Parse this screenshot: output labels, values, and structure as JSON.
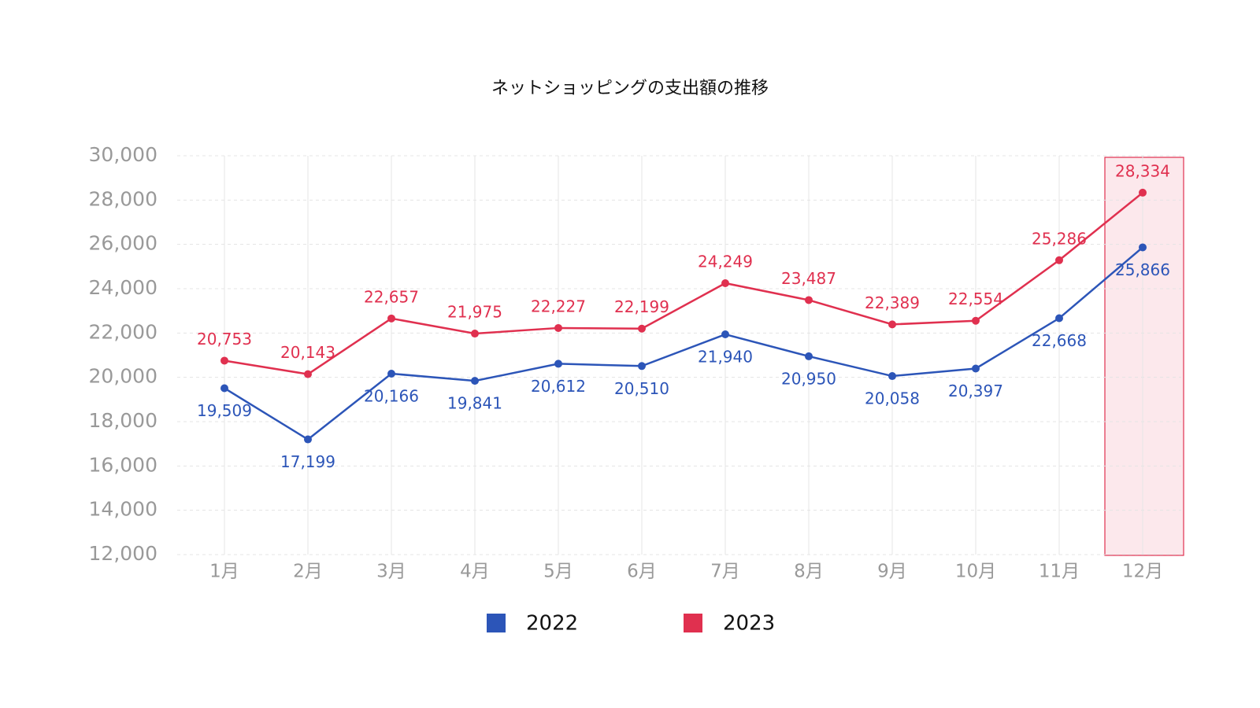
{
  "chart_data": {
    "type": "line",
    "title": "ネットショッピングの支出額の推移",
    "categories": [
      "1月",
      "2月",
      "3月",
      "4月",
      "5月",
      "6月",
      "7月",
      "8月",
      "9月",
      "10月",
      "11月",
      "12月"
    ],
    "series": [
      {
        "name": "2022",
        "color": "#2c55b8",
        "values": [
          19509,
          17199,
          20166,
          19841,
          20612,
          20510,
          21940,
          20950,
          20058,
          20397,
          22668,
          25866
        ],
        "value_labels": [
          "19,509",
          "17,199",
          "20,166",
          "19,841",
          "20,612",
          "20,510",
          "21,940",
          "20,950",
          "20,058",
          "20,397",
          "22,668",
          "25,866"
        ]
      },
      {
        "name": "2023",
        "color": "#e0304f",
        "values": [
          20753,
          20143,
          22657,
          21975,
          22227,
          22199,
          24249,
          23487,
          22389,
          22554,
          25286,
          28334
        ],
        "value_labels": [
          "20,753",
          "20,143",
          "22,657",
          "21,975",
          "22,227",
          "22,199",
          "24,249",
          "23,487",
          "22,389",
          "22,554",
          "25,286",
          "28,334"
        ]
      }
    ],
    "ylim": [
      12000,
      30000
    ],
    "yticks": [
      {
        "value": 12000,
        "label": "12,000"
      },
      {
        "value": 14000,
        "label": "14,000"
      },
      {
        "value": 16000,
        "label": "16,000"
      },
      {
        "value": 18000,
        "label": "18,000"
      },
      {
        "value": 20000,
        "label": "20,000"
      },
      {
        "value": 22000,
        "label": "22,000"
      },
      {
        "value": 24000,
        "label": "24,000"
      },
      {
        "value": 26000,
        "label": "26,000"
      },
      {
        "value": 28000,
        "label": "28,000"
      },
      {
        "value": 30000,
        "label": "30,000"
      }
    ],
    "grid": true,
    "legend": "bottom",
    "highlight_index": 11,
    "highlight_color": "#e0304f"
  }
}
